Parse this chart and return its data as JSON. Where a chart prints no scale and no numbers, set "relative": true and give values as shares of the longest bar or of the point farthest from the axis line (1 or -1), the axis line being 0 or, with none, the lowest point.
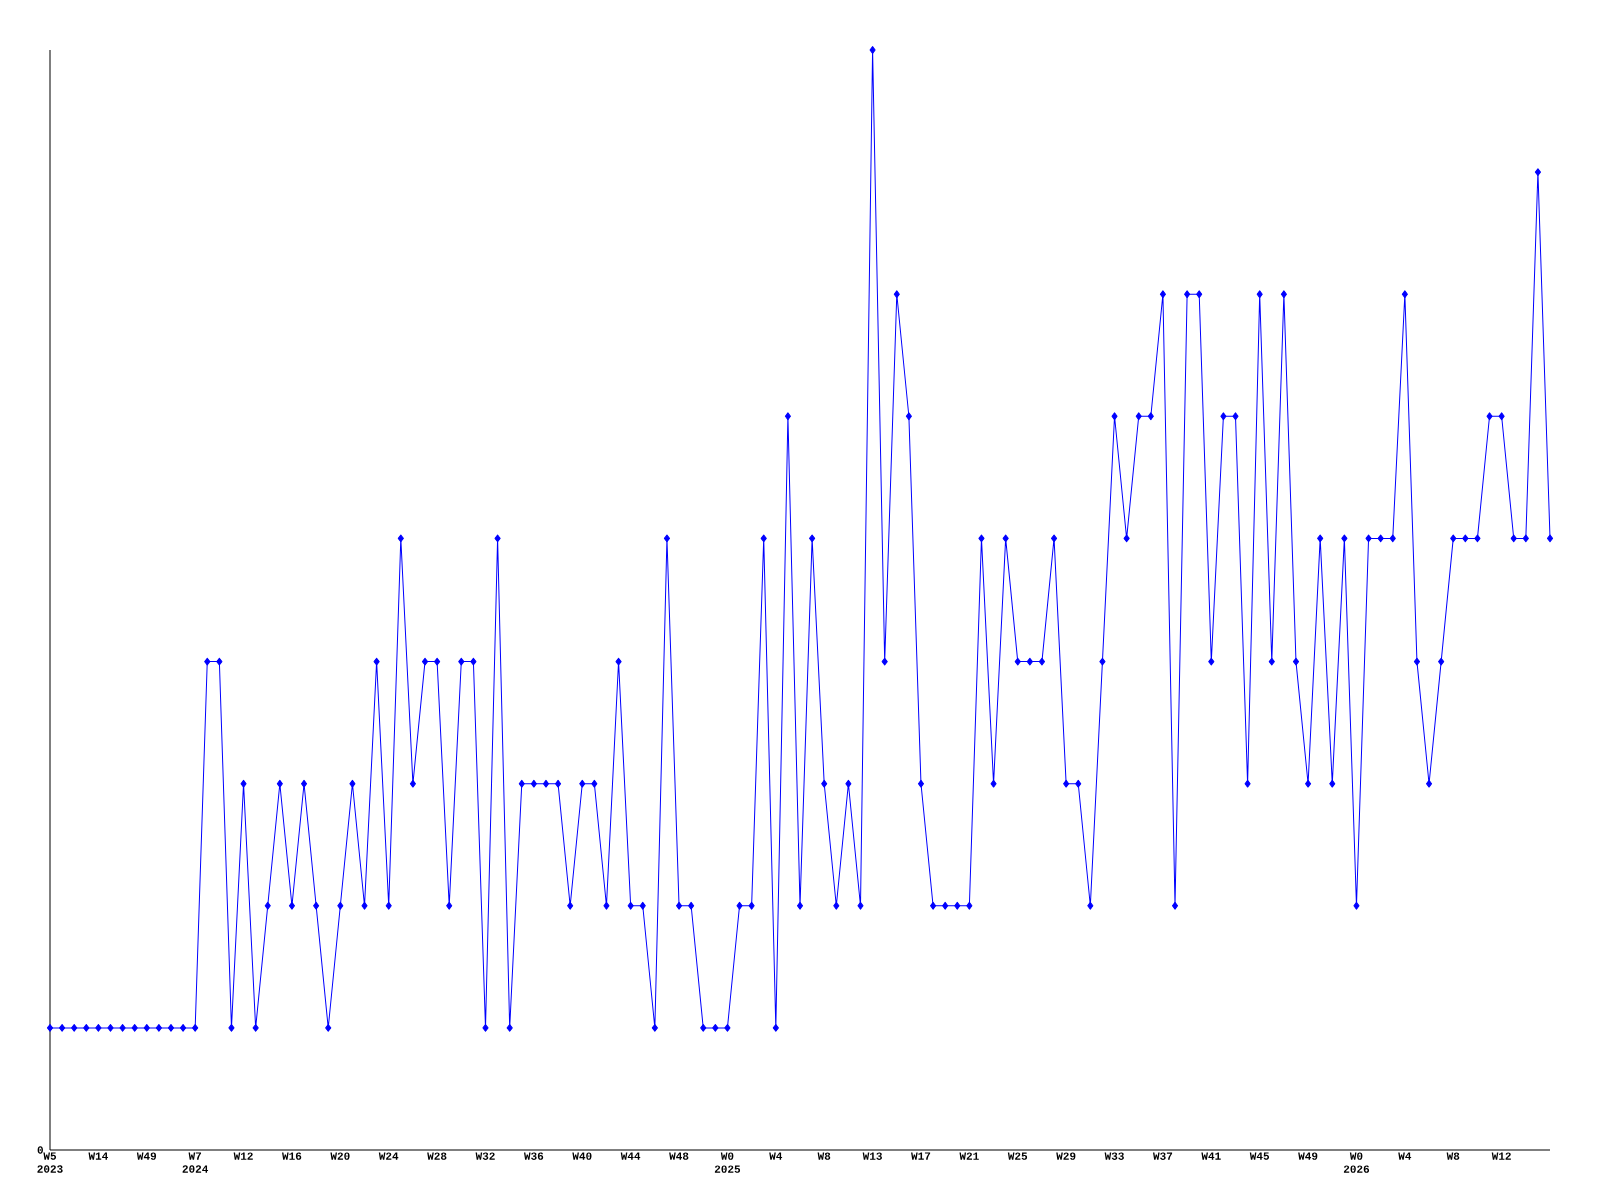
{
  "chart_data": {
    "type": "line",
    "relative": true,
    "color": "#0000ff",
    "marker": "diamond",
    "line_style": "solid",
    "categories": [
      "W5 2023",
      null,
      null,
      null,
      "W14",
      null,
      null,
      null,
      "W49",
      null,
      null,
      null,
      "W7 2024",
      null,
      null,
      null,
      "W12",
      null,
      null,
      null,
      "W16",
      null,
      null,
      null,
      "W20",
      null,
      null,
      null,
      "W24",
      null,
      null,
      null,
      "W28",
      null,
      null,
      null,
      "W32",
      null,
      null,
      null,
      "W36",
      null,
      null,
      null,
      "W40",
      null,
      null,
      null,
      "W44",
      null,
      null,
      null,
      "W48",
      null,
      null,
      null,
      "W0 2025",
      null,
      null,
      null,
      "W4",
      null,
      null,
      null,
      "W8",
      null,
      null,
      null,
      "W13",
      null,
      null,
      null,
      "W17",
      null,
      null,
      null,
      "W21",
      null,
      null,
      null,
      "W25",
      null,
      null,
      null,
      "W29",
      null,
      null,
      null,
      "W33",
      null,
      null,
      null,
      "W37",
      null,
      null,
      null,
      "W41",
      null,
      null,
      null,
      "W45",
      null,
      null,
      null,
      "W49",
      null,
      null,
      null,
      "W0 2026",
      null,
      null,
      null,
      "W4",
      null,
      null,
      null,
      "W8",
      null,
      null,
      null,
      "W12",
      null,
      null,
      null,
      null
    ],
    "values": [
      0.111,
      0.111,
      0.111,
      0.111,
      0.111,
      0.111,
      0.111,
      0.111,
      0.111,
      0.111,
      0.111,
      0.111,
      0.111,
      0.444,
      0.444,
      0.111,
      0.333,
      0.111,
      0.222,
      0.333,
      0.222,
      0.333,
      0.222,
      0.111,
      0.222,
      0.333,
      0.222,
      0.444,
      0.222,
      0.556,
      0.333,
      0.444,
      0.444,
      0.222,
      0.444,
      0.444,
      0.111,
      0.556,
      0.111,
      0.333,
      0.333,
      0.333,
      0.333,
      0.222,
      0.333,
      0.333,
      0.222,
      0.444,
      0.222,
      0.222,
      0.111,
      0.556,
      0.222,
      0.222,
      0.111,
      0.111,
      0.111,
      0.222,
      0.222,
      0.556,
      0.111,
      0.667,
      0.222,
      0.556,
      0.333,
      0.222,
      0.333,
      0.222,
      1,
      0.444,
      0.778,
      0.667,
      0.333,
      0.222,
      0.222,
      0.222,
      0.222,
      0.556,
      0.333,
      0.556,
      0.444,
      0.444,
      0.444,
      0.556,
      0.333,
      0.333,
      0.222,
      0.444,
      0.667,
      0.556,
      0.667,
      0.667,
      0.778,
      0.222,
      0.778,
      0.778,
      0.444,
      0.667,
      0.667,
      0.333,
      0.778,
      0.444,
      0.778,
      0.444,
      0.333,
      0.556,
      0.333,
      0.556,
      0.222,
      0.556,
      0.556,
      0.556,
      0.778,
      0.444,
      0.333,
      0.444,
      0.556,
      0.556,
      0.556,
      0.667,
      0.667,
      0.556,
      0.556,
      0.889,
      0.556
    ],
    "annotations": [
      "0"
    ]
  }
}
